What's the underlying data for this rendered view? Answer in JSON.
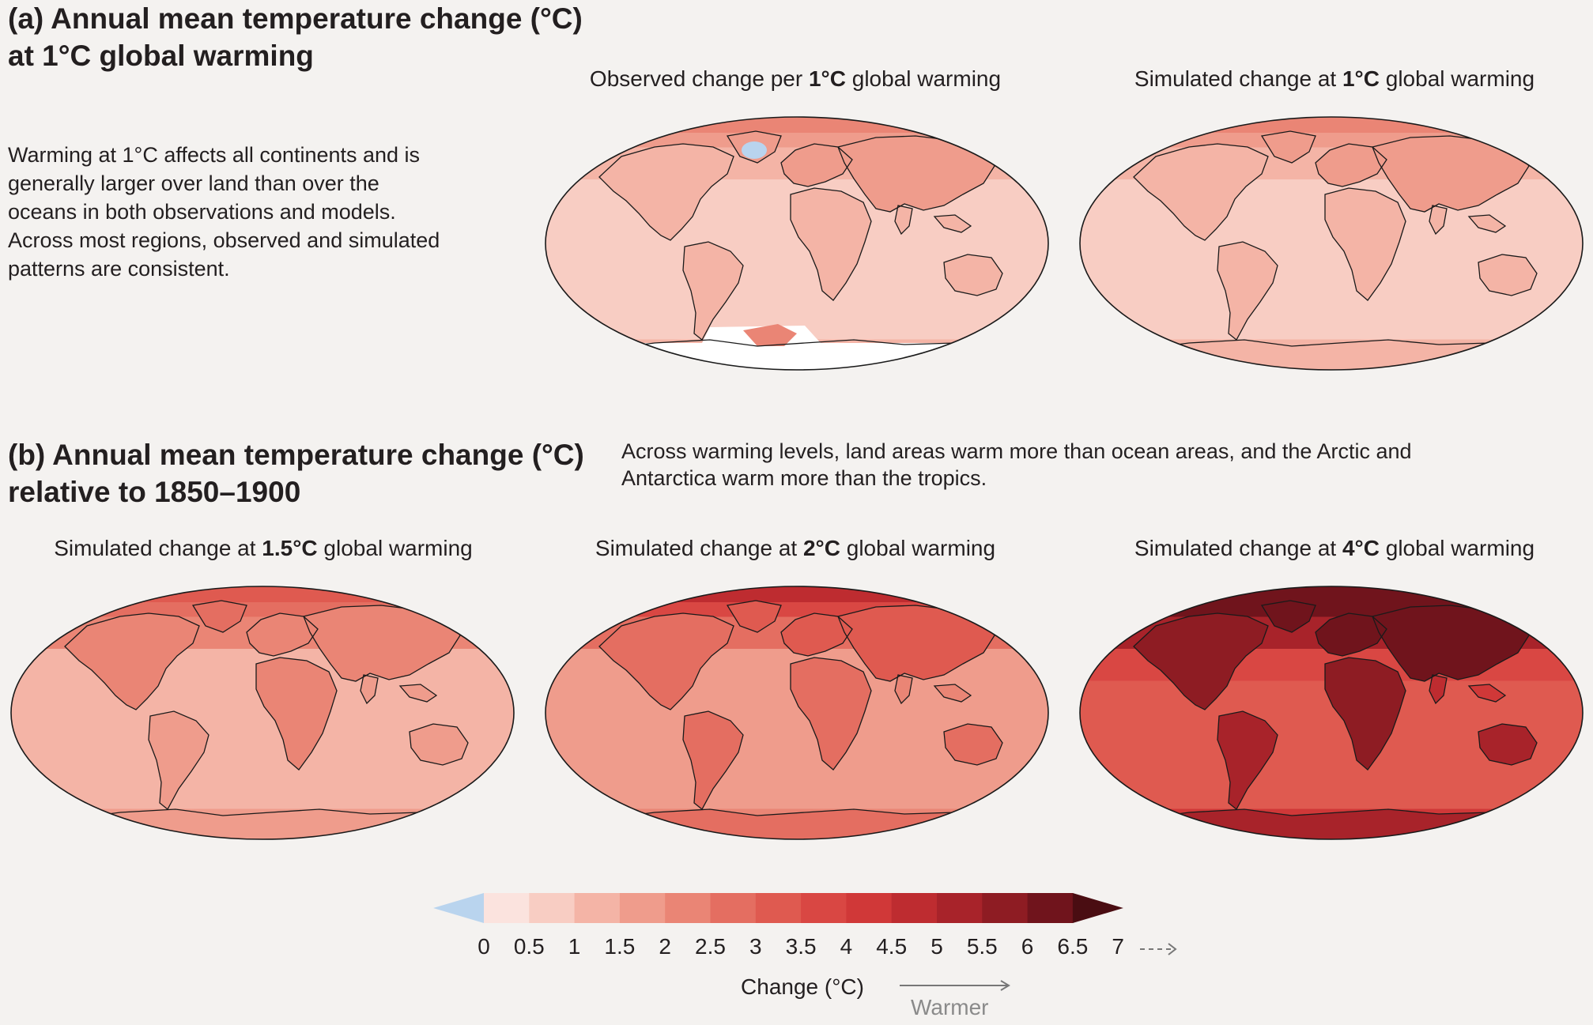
{
  "panel_a": {
    "heading_line1": "(a) Annual mean temperature change (°C)",
    "heading_line2": "at 1°C global warming",
    "description": "Warming at 1°C affects all continents and is generally larger over land than over the oceans in both observations and models. Across most regions, observed and simulated patterns are consistent.",
    "maps": [
      {
        "title_pre": "Observed change per ",
        "title_bold": "1°C",
        "title_post": " global warming",
        "level": 1,
        "observed": true
      },
      {
        "title_pre": "Simulated change at ",
        "title_bold": "1°C",
        "title_post": " global warming",
        "level": 1,
        "observed": false
      }
    ]
  },
  "panel_b": {
    "heading_line1": "(b) Annual mean temperature change (°C)",
    "heading_line2": "relative to 1850–1900",
    "description": "Across warming levels, land areas warm more than ocean areas, and the Arctic and Antarctica warm more than the tropics.",
    "maps": [
      {
        "title_pre": "Simulated change at ",
        "title_bold": "1.5°C",
        "title_post": " global warming",
        "level": 1.5
      },
      {
        "title_pre": "Simulated change at ",
        "title_bold": "2°C",
        "title_post": " global warming",
        "level": 2
      },
      {
        "title_pre": "Simulated change at ",
        "title_bold": "4°C",
        "title_post": " global warming",
        "level": 4
      }
    ]
  },
  "colorbar": {
    "title": "Change (°C)",
    "warmer_label": "Warmer",
    "ticks": [
      "0",
      "0.5",
      "1",
      "1.5",
      "2",
      "2.5",
      "3",
      "3.5",
      "4",
      "4.5",
      "5",
      "5.5",
      "6",
      "6.5",
      "7"
    ],
    "colors": [
      "#fbe3de",
      "#f8cdc3",
      "#f4b4a6",
      "#ef9c8c",
      "#ea8575",
      "#e46e61",
      "#df5a50",
      "#d94743",
      "#d03838",
      "#be2c30",
      "#a8232a",
      "#8e1c23",
      "#70141c"
    ],
    "below_color": "#b9d4ee",
    "above_color": "#4a0d12"
  }
}
